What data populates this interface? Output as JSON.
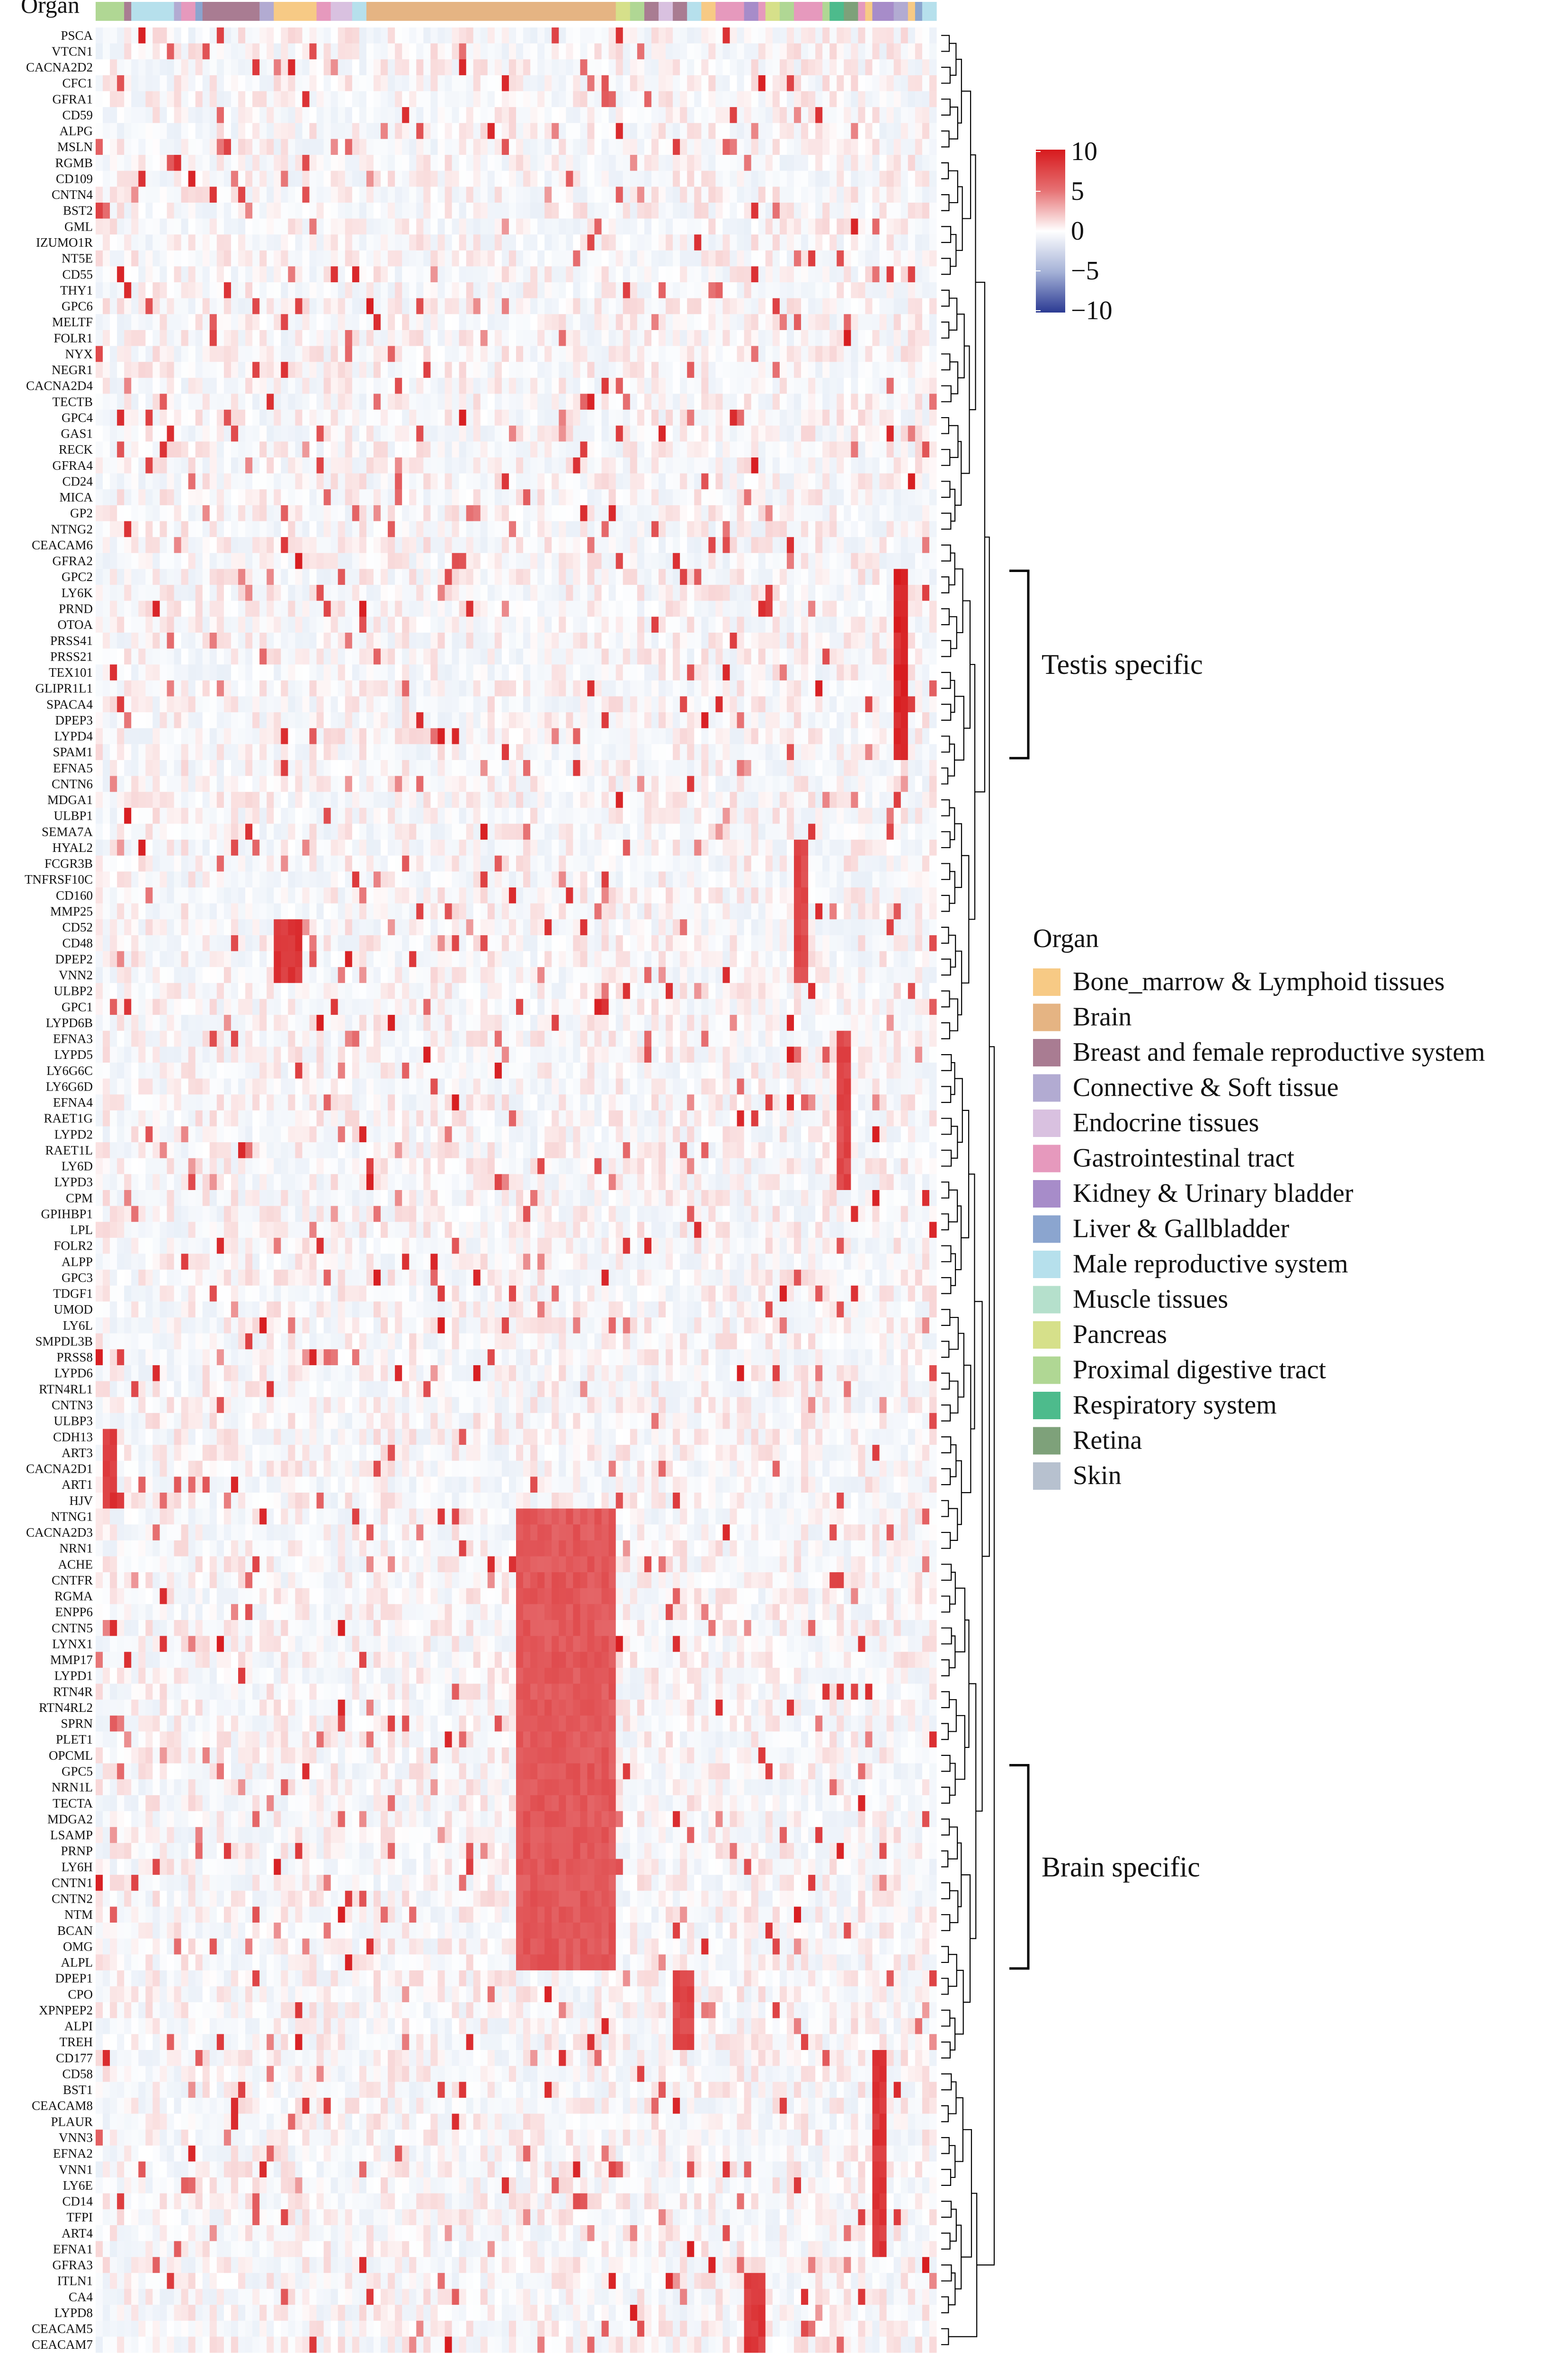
{
  "chart_data": {
    "type": "heatmap",
    "annotation_title": "Organ",
    "color_scale": {
      "min": -10,
      "max": 10,
      "ticks": [
        "10",
        "5",
        "0",
        "−5",
        "−10"
      ],
      "low_color": "#2b3a93",
      "mid_color": "#ffffff",
      "high_color": "#d7191c"
    },
    "legend": {
      "title": "Organ",
      "items": [
        {
          "name": "Bone_marrow & Lymphoid tissues",
          "color": "#f7ca85"
        },
        {
          "name": "Brain",
          "color": "#e5b483"
        },
        {
          "name": "Breast and female reproductive system",
          "color": "#a97c92"
        },
        {
          "name": "Connective & Soft tissue",
          "color": "#b2abd2"
        },
        {
          "name": "Endocrine tissues",
          "color": "#d9c1e0"
        },
        {
          "name": "Gastrointestinal tract",
          "color": "#e699bd"
        },
        {
          "name": "Kidney & Urinary bladder",
          "color": "#a78cc9"
        },
        {
          "name": "Liver & Gallbladder",
          "color": "#8ba5cf"
        },
        {
          "name": "Male reproductive system",
          "color": "#b6e0ec"
        },
        {
          "name": "Muscle tissues",
          "color": "#b5e0cc"
        },
        {
          "name": "Pancreas",
          "color": "#d6e08a"
        },
        {
          "name": "Proximal digestive tract",
          "color": "#b0d794"
        },
        {
          "name": "Respiratory system",
          "color": "#4dbb8c"
        },
        {
          "name": "Retina",
          "color": "#7ea17a"
        },
        {
          "name": "Skin",
          "color": "#b7c1cf"
        }
      ]
    },
    "organ_annotation": [
      "Proximal digestive tract",
      "Proximal digestive tract",
      "Proximal digestive tract",
      "Proximal digestive tract",
      "Breast and female reproductive system",
      "Male reproductive system",
      "Male reproductive system",
      "Male reproductive system",
      "Male reproductive system",
      "Male reproductive system",
      "Male reproductive system",
      "Connective & Soft tissue",
      "Gastrointestinal tract",
      "Gastrointestinal tract",
      "Liver & Gallbladder",
      "Breast and female reproductive system",
      "Breast and female reproductive system",
      "Breast and female reproductive system",
      "Breast and female reproductive system",
      "Breast and female reproductive system",
      "Breast and female reproductive system",
      "Breast and female reproductive system",
      "Breast and female reproductive system",
      "Connective & Soft tissue",
      "Connective & Soft tissue",
      "Bone_marrow & Lymphoid tissues",
      "Bone_marrow & Lymphoid tissues",
      "Bone_marrow & Lymphoid tissues",
      "Bone_marrow & Lymphoid tissues",
      "Bone_marrow & Lymphoid tissues",
      "Bone_marrow & Lymphoid tissues",
      "Gastrointestinal tract",
      "Gastrointestinal tract",
      "Endocrine tissues",
      "Endocrine tissues",
      "Endocrine tissues",
      "Male reproductive system",
      "Male reproductive system",
      "Brain",
      "Brain",
      "Brain",
      "Brain",
      "Brain",
      "Brain",
      "Brain",
      "Brain",
      "Brain",
      "Brain",
      "Brain",
      "Brain",
      "Brain",
      "Brain",
      "Brain",
      "Brain",
      "Brain",
      "Brain",
      "Brain",
      "Brain",
      "Brain",
      "Brain",
      "Brain",
      "Brain",
      "Brain",
      "Brain",
      "Brain",
      "Brain",
      "Brain",
      "Brain",
      "Brain",
      "Brain",
      "Brain",
      "Brain",
      "Brain",
      "Pancreas",
      "Pancreas",
      "Proximal digestive tract",
      "Proximal digestive tract",
      "Breast and female reproductive system",
      "Breast and female reproductive system",
      "Endocrine tissues",
      "Endocrine tissues",
      "Breast and female reproductive system",
      "Breast and female reproductive system",
      "Male reproductive system",
      "Male reproductive system",
      "Bone_marrow & Lymphoid tissues",
      "Bone_marrow & Lymphoid tissues",
      "Gastrointestinal tract",
      "Gastrointestinal tract",
      "Gastrointestinal tract",
      "Gastrointestinal tract",
      "Kidney & Urinary bladder",
      "Kidney & Urinary bladder",
      "Gastrointestinal tract",
      "Pancreas",
      "Pancreas",
      "Proximal digestive tract",
      "Proximal digestive tract",
      "Gastrointestinal tract",
      "Gastrointestinal tract",
      "Gastrointestinal tract",
      "Gastrointestinal tract",
      "Proximal digestive tract",
      "Respiratory system",
      "Respiratory system",
      "Retina",
      "Retina",
      "Gastrointestinal tract",
      "Bone_marrow & Lymphoid tissues",
      "Kidney & Urinary bladder",
      "Kidney & Urinary bladder",
      "Kidney & Urinary bladder",
      "Connective & Soft tissue",
      "Connective & Soft tissue",
      "Bone_marrow & Lymphoid tissues",
      "Liver & Gallbladder",
      "Male reproductive system",
      "Male reproductive system"
    ],
    "rows": [
      "PSCA",
      "VTCN1",
      "CACNA2D2",
      "CFC1",
      "GFRA1",
      "CD59",
      "ALPG",
      "MSLN",
      "RGMB",
      "CD109",
      "CNTN4",
      "BST2",
      "GML",
      "IZUMO1R",
      "NT5E",
      "CD55",
      "THY1",
      "GPC6",
      "MELTF",
      "FOLR1",
      "NYX",
      "NEGR1",
      "CACNA2D4",
      "TECTB",
      "GPC4",
      "GAS1",
      "RECK",
      "GFRA4",
      "CD24",
      "MICA",
      "GP2",
      "NTNG2",
      "CEACAM6",
      "GFRA2",
      "GPC2",
      "LY6K",
      "PRND",
      "OTOA",
      "PRSS41",
      "PRSS21",
      "TEX101",
      "GLIPR1L1",
      "SPACA4",
      "DPEP3",
      "LYPD4",
      "SPAM1",
      "EFNA5",
      "CNTN6",
      "MDGA1",
      "ULBP1",
      "SEMA7A",
      "HYAL2",
      "FCGR3B",
      "TNFRSF10C",
      "CD160",
      "MMP25",
      "CD52",
      "CD48",
      "DPEP2",
      "VNN2",
      "ULBP2",
      "GPC1",
      "LYPD6B",
      "EFNA3",
      "LYPD5",
      "LY6G6C",
      "LY6G6D",
      "EFNA4",
      "RAET1G",
      "LYPD2",
      "RAET1L",
      "LY6D",
      "LYPD3",
      "CPM",
      "GPIHBP1",
      "LPL",
      "FOLR2",
      "ALPP",
      "GPC3",
      "TDGF1",
      "UMOD",
      "LY6L",
      "SMPDL3B",
      "PRSS8",
      "LYPD6",
      "RTN4RL1",
      "CNTN3",
      "ULBP3",
      "CDH13",
      "ART3",
      "CACNA2D1",
      "ART1",
      "HJV",
      "NTNG1",
      "CACNA2D3",
      "NRN1",
      "ACHE",
      "CNTFR",
      "RGMA",
      "ENPP6",
      "CNTN5",
      "LYNX1",
      "MMP17",
      "LYPD1",
      "RTN4R",
      "RTN4RL2",
      "SPRN",
      "PLET1",
      "OPCML",
      "GPC5",
      "NRN1L",
      "TECTA",
      "MDGA2",
      "LSAMP",
      "PRNP",
      "LY6H",
      "CNTN1",
      "CNTN2",
      "NTM",
      "BCAN",
      "OMG",
      "ALPL",
      "DPEP1",
      "CPO",
      "XPNPEP2",
      "ALPI",
      "TREH",
      "CD177",
      "CD58",
      "BST1",
      "CEACAM8",
      "PLAUR",
      "VNN3",
      "EFNA2",
      "VNN1",
      "LY6E",
      "CD14",
      "TFPI",
      "ART4",
      "EFNA1",
      "GFRA3",
      "ITLN1",
      "CA4",
      "LYPD8",
      "CEACAM5",
      "CEACAM7"
    ],
    "row_range": [
      0,
      150
    ],
    "column_range": [
      0,
      116
    ],
    "column_labels": [],
    "hot_spots": [
      {
        "rows": "GPC2-SPAM1",
        "columns": [
          112,
          113
        ],
        "value": 10
      },
      {
        "rows": "NTNG1-ALPL",
        "columns": [
          59,
          72
        ],
        "value": 7
      },
      {
        "rows": "CDH13-HJV",
        "columns": [
          1,
          2
        ],
        "value": 9
      },
      {
        "rows": "CD52-VNN2",
        "columns": [
          25,
          28
        ],
        "value": 9
      },
      {
        "rows": "CD177-EFNA1",
        "columns": [
          109,
          110
        ],
        "value": 9
      },
      {
        "rows": "ITLN1-CEACAM7",
        "columns": [
          91,
          93
        ],
        "value": 9
      },
      {
        "rows": "DPEP1-TREH",
        "columns": [
          81,
          83
        ],
        "value": 8
      },
      {
        "rows": "EFNA3-LYPD3",
        "columns": [
          104,
          105
        ],
        "value": 8
      },
      {
        "rows": "HYAL2-VNN2",
        "columns": [
          98,
          99
        ],
        "value": 8
      }
    ],
    "row_groups": [
      {
        "label": "Testis specific",
        "from": "GPC2",
        "to": "SPAM1"
      },
      {
        "label": "Brain specific",
        "from": "GPC5",
        "to": "ALPL"
      }
    ]
  }
}
